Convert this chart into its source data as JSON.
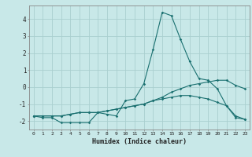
{
  "xlabel": "Humidex (Indice chaleur)",
  "background_color": "#c8e8e8",
  "grid_color": "#aacfcf",
  "line_color": "#1a7070",
  "x_values": [
    0,
    1,
    2,
    3,
    4,
    5,
    6,
    7,
    8,
    9,
    10,
    11,
    12,
    13,
    14,
    15,
    16,
    17,
    18,
    19,
    20,
    21,
    22,
    23
  ],
  "series1": [
    -1.7,
    -1.8,
    -1.8,
    -2.1,
    -2.1,
    -2.1,
    -2.1,
    -1.5,
    -1.6,
    -1.7,
    -0.8,
    -0.7,
    0.2,
    2.2,
    4.4,
    4.2,
    2.8,
    1.5,
    0.5,
    0.4,
    -0.1,
    -1.1,
    -1.8,
    -1.9
  ],
  "series2": [
    -1.7,
    -1.7,
    -1.7,
    -1.7,
    -1.6,
    -1.5,
    -1.5,
    -1.5,
    -1.4,
    -1.3,
    -1.2,
    -1.1,
    -1.0,
    -0.8,
    -0.6,
    -0.3,
    -0.1,
    0.1,
    0.2,
    0.3,
    0.4,
    0.4,
    0.1,
    -0.1
  ],
  "series3": [
    -1.7,
    -1.7,
    -1.7,
    -1.7,
    -1.6,
    -1.5,
    -1.5,
    -1.5,
    -1.4,
    -1.3,
    -1.2,
    -1.1,
    -1.0,
    -0.8,
    -0.7,
    -0.6,
    -0.5,
    -0.5,
    -0.6,
    -0.7,
    -0.9,
    -1.1,
    -1.7,
    -1.9
  ],
  "ylim": [
    -2.5,
    4.8
  ],
  "xlim": [
    -0.5,
    23.5
  ],
  "yticks": [
    -2,
    -1,
    0,
    1,
    2,
    3,
    4
  ],
  "xticks": [
    0,
    1,
    2,
    3,
    4,
    5,
    6,
    7,
    8,
    9,
    10,
    11,
    12,
    13,
    14,
    15,
    16,
    17,
    18,
    19,
    20,
    21,
    22,
    23
  ]
}
